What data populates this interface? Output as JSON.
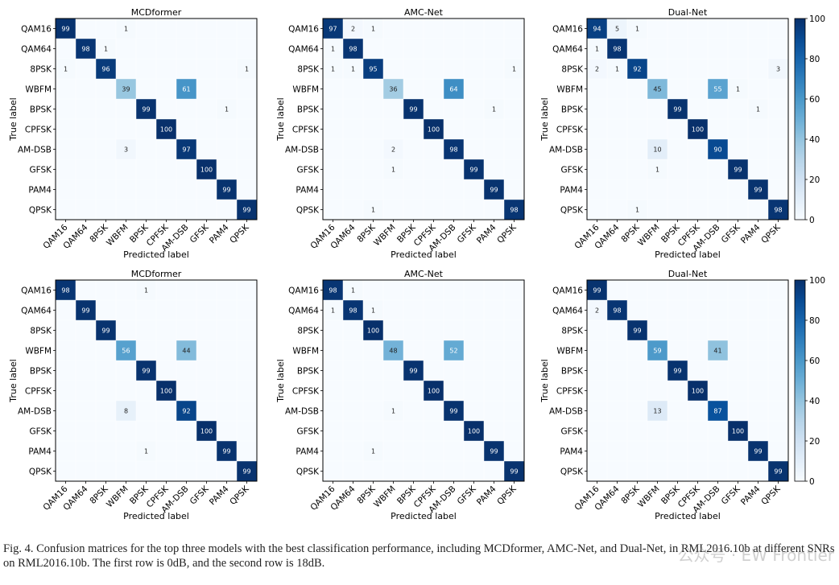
{
  "chart_data": [
    {
      "type": "heatmap",
      "title": "MCDformer",
      "row": 1,
      "xlabel": "Predicted label",
      "ylabel": "True label",
      "labels": [
        "QAM16",
        "QAM64",
        "8PSK",
        "WBFM",
        "BPSK",
        "CPFSK",
        "AM-DSB",
        "GFSK",
        "PAM4",
        "QPSK"
      ],
      "cells": [
        [
          0,
          0,
          99
        ],
        [
          0,
          3,
          1
        ],
        [
          1,
          1,
          98
        ],
        [
          1,
          2,
          1
        ],
        [
          2,
          0,
          1
        ],
        [
          2,
          2,
          96
        ],
        [
          2,
          9,
          1
        ],
        [
          3,
          3,
          39
        ],
        [
          3,
          6,
          61
        ],
        [
          4,
          4,
          99
        ],
        [
          4,
          8,
          1
        ],
        [
          5,
          5,
          100
        ],
        [
          6,
          3,
          3
        ],
        [
          6,
          6,
          97
        ],
        [
          7,
          7,
          100
        ],
        [
          8,
          8,
          99
        ],
        [
          9,
          9,
          99
        ]
      ]
    },
    {
      "type": "heatmap",
      "title": "AMC-Net",
      "row": 1,
      "xlabel": "Predicted label",
      "ylabel": "True label",
      "labels": [
        "QAM16",
        "QAM64",
        "8PSK",
        "WBFM",
        "BPSK",
        "CPFSK",
        "AM-DSB",
        "GFSK",
        "PAM4",
        "QPSK"
      ],
      "cells": [
        [
          0,
          0,
          97
        ],
        [
          0,
          1,
          2
        ],
        [
          0,
          2,
          1
        ],
        [
          1,
          0,
          1
        ],
        [
          1,
          1,
          98
        ],
        [
          2,
          0,
          1
        ],
        [
          2,
          1,
          1
        ],
        [
          2,
          2,
          95
        ],
        [
          2,
          9,
          1
        ],
        [
          3,
          3,
          36
        ],
        [
          3,
          6,
          64
        ],
        [
          4,
          4,
          99
        ],
        [
          4,
          8,
          1
        ],
        [
          5,
          5,
          100
        ],
        [
          6,
          3,
          2
        ],
        [
          6,
          6,
          98
        ],
        [
          7,
          3,
          1
        ],
        [
          7,
          7,
          99
        ],
        [
          8,
          8,
          99
        ],
        [
          9,
          2,
          1
        ],
        [
          9,
          9,
          98
        ]
      ]
    },
    {
      "type": "heatmap",
      "title": "Dual-Net",
      "row": 1,
      "xlabel": "Predicted label",
      "ylabel": "True label",
      "labels": [
        "QAM16",
        "QAM64",
        "8PSK",
        "WBFM",
        "BPSK",
        "CPFSK",
        "AM-DSB",
        "GFSK",
        "PAM4",
        "QPSK"
      ],
      "cells": [
        [
          0,
          0,
          94
        ],
        [
          0,
          1,
          5
        ],
        [
          0,
          2,
          1
        ],
        [
          1,
          0,
          1
        ],
        [
          1,
          1,
          98
        ],
        [
          2,
          0,
          2
        ],
        [
          2,
          1,
          1
        ],
        [
          2,
          2,
          92
        ],
        [
          2,
          9,
          3
        ],
        [
          3,
          3,
          45
        ],
        [
          3,
          6,
          55
        ],
        [
          3,
          7,
          1
        ],
        [
          4,
          4,
          99
        ],
        [
          4,
          8,
          1
        ],
        [
          5,
          5,
          100
        ],
        [
          6,
          3,
          10
        ],
        [
          6,
          6,
          90
        ],
        [
          7,
          3,
          1
        ],
        [
          7,
          7,
          99
        ],
        [
          8,
          8,
          99
        ],
        [
          9,
          2,
          1
        ],
        [
          9,
          9,
          98
        ]
      ]
    },
    {
      "type": "heatmap",
      "title": "MCDformer",
      "row": 2,
      "xlabel": "Predicted label",
      "ylabel": "True label",
      "labels": [
        "QAM16",
        "QAM64",
        "8PSK",
        "WBFM",
        "BPSK",
        "CPFSK",
        "AM-DSB",
        "GFSK",
        "PAM4",
        "QPSK"
      ],
      "cells": [
        [
          0,
          0,
          98
        ],
        [
          0,
          4,
          1
        ],
        [
          1,
          1,
          99
        ],
        [
          2,
          2,
          99
        ],
        [
          3,
          3,
          56
        ],
        [
          3,
          6,
          44
        ],
        [
          4,
          4,
          99
        ],
        [
          5,
          5,
          100
        ],
        [
          6,
          3,
          8
        ],
        [
          6,
          6,
          92
        ],
        [
          7,
          7,
          100
        ],
        [
          8,
          4,
          1
        ],
        [
          8,
          8,
          99
        ],
        [
          9,
          9,
          99
        ]
      ]
    },
    {
      "type": "heatmap",
      "title": "AMC-Net",
      "row": 2,
      "xlabel": "Predicted label",
      "ylabel": "True label",
      "labels": [
        "QAM16",
        "QAM64",
        "8PSK",
        "WBFM",
        "BPSK",
        "CPFSK",
        "AM-DSB",
        "GFSK",
        "PAM4",
        "QPSK"
      ],
      "cells": [
        [
          0,
          0,
          98
        ],
        [
          0,
          1,
          1
        ],
        [
          1,
          0,
          1
        ],
        [
          1,
          1,
          98
        ],
        [
          1,
          2,
          1
        ],
        [
          2,
          2,
          100
        ],
        [
          3,
          3,
          48
        ],
        [
          3,
          6,
          52
        ],
        [
          4,
          4,
          99
        ],
        [
          5,
          5,
          100
        ],
        [
          6,
          3,
          1
        ],
        [
          6,
          6,
          99
        ],
        [
          7,
          7,
          100
        ],
        [
          8,
          2,
          1
        ],
        [
          8,
          8,
          99
        ],
        [
          9,
          9,
          99
        ]
      ]
    },
    {
      "type": "heatmap",
      "title": "Dual-Net",
      "row": 2,
      "xlabel": "Predicted label",
      "ylabel": "True label",
      "labels": [
        "QAM16",
        "QAM64",
        "8PSK",
        "WBFM",
        "BPSK",
        "CPFSK",
        "AM-DSB",
        "GFSK",
        "PAM4",
        "QPSK"
      ],
      "cells": [
        [
          0,
          0,
          99
        ],
        [
          1,
          0,
          2
        ],
        [
          1,
          1,
          98
        ],
        [
          2,
          2,
          99
        ],
        [
          3,
          3,
          59
        ],
        [
          3,
          6,
          41
        ],
        [
          4,
          4,
          99
        ],
        [
          5,
          5,
          100
        ],
        [
          6,
          3,
          13
        ],
        [
          6,
          6,
          87
        ],
        [
          7,
          7,
          100
        ],
        [
          8,
          8,
          99
        ],
        [
          9,
          9,
          99
        ]
      ]
    }
  ],
  "colorbar": {
    "range": [
      0,
      100
    ],
    "ticks": [
      "0",
      "20",
      "40",
      "60",
      "80",
      "100"
    ],
    "colormap": "Blues"
  },
  "caption": "Fig. 4.  Confusion matrices for the top three models with the best classification performance, including MCDformer, AMC-Net, and Dual-Net, in RML2016.10b at different SNRs on RML2016.10b. The first row is 0dB, and the second row is 18dB.",
  "watermark": "公众号 · EW Frontier"
}
